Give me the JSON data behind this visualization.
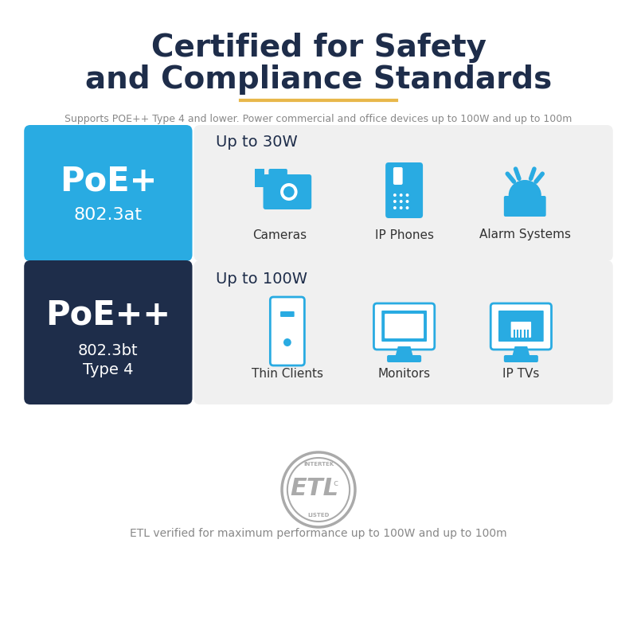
{
  "bg_color": "#ffffff",
  "title_line1": "Certified for Safety",
  "title_line2": "and Compliance Standards",
  "title_color": "#1e2d4a",
  "underline_color": "#e8b84b",
  "subtitle": "Supports POE++ Type 4 and lower. Power commercial and office devices up to 100W and up to 100m",
  "subtitle_color": "#888888",
  "poe_plus_color": "#29abe2",
  "poe_plus_label": "PoE+",
  "poe_plus_sub": "802.3at",
  "poe_plusplus_color": "#1e2d4a",
  "poe_plusplus_label": "PoE++",
  "poe_plusplus_sub1": "802.3bt",
  "poe_plusplus_sub2": "Type 4",
  "row1_power": "Up to 30W",
  "row1_devices": [
    "Cameras",
    "IP Phones",
    "Alarm Systems"
  ],
  "row2_power": "Up to 100W",
  "row2_devices": [
    "Thin Clients",
    "Monitors",
    "IP TVs"
  ],
  "box_bg_color": "#f0f0f0",
  "icon_color": "#29abe2",
  "label_color": "#333333",
  "etl_text": "ETL verified for maximum performance up to 100W and up to 100m",
  "etl_color": "#888888",
  "etl_circle_color": "#aaaaaa"
}
